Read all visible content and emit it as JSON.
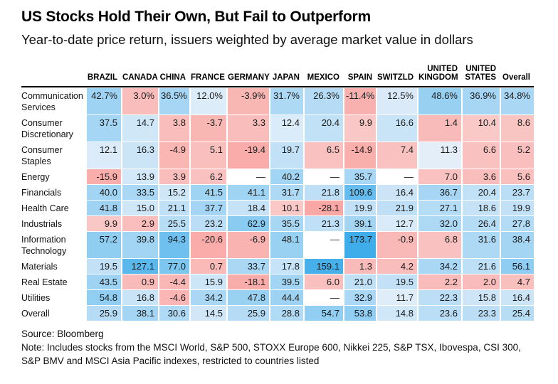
{
  "header": {
    "title": "US Stocks Hold Their Own, But Fail to Outperform",
    "subtitle": "Year-to-date price return, issuers weighted by average market value in dollars"
  },
  "footer": {
    "source": "Source: Bloomberg",
    "note": "Note: Includes stocks from the MSCI World, S&P 500, STOXX Europe 600, Nikkei 225, S&P TSX, Ibovespa, CSI 300, S&P BMV and MSCI Asia Pacific indexes, restricted to countries listed"
  },
  "chart_data": {
    "type": "heatmap",
    "title": "US Stocks Hold Their Own, But Fail to Outperform",
    "subtitle": "Year-to-date price return, issuers weighted by average market value in dollars",
    "unit": "percent",
    "missing_marker": "—",
    "columns": [
      "BRAZIL",
      "CANADA",
      "CHINA",
      "FRANCE",
      "GERMANY",
      "JAPAN",
      "MEXICO",
      "SPAIN",
      "SWITZLD",
      "UNITED KINGDOM",
      "UNITED STATES",
      "Overall"
    ],
    "rows": [
      {
        "label": "Communication Services",
        "values": [
          "42.7%",
          "3.0%",
          "36.5%",
          "12.0%",
          "-3.9%",
          "31.7%",
          "26.3%",
          "-11.4%",
          "12.5%",
          "48.6%",
          "36.9%",
          "34.8%"
        ]
      },
      {
        "label": "Consumer Discretionary",
        "values": [
          "37.5",
          "14.7",
          "3.8",
          "-3.7",
          "3.3",
          "12.4",
          "20.4",
          "9.9",
          "16.6",
          "1.4",
          "10.4",
          "8.6"
        ]
      },
      {
        "label": "Consumer Staples",
        "values": [
          "12.1",
          "16.3",
          "-4.9",
          "5.1",
          "-19.4",
          "19.7",
          "6.5",
          "-14.9",
          "7.4",
          "11.3",
          "6.6",
          "5.2"
        ]
      },
      {
        "label": "Energy",
        "values": [
          "-15.9",
          "13.9",
          "3.9",
          "6.2",
          "—",
          "40.2",
          "—",
          "35.7",
          "—",
          "7.0",
          "3.6",
          "5.6"
        ]
      },
      {
        "label": "Financials",
        "values": [
          "40.0",
          "33.5",
          "15.2",
          "41.5",
          "41.1",
          "31.7",
          "21.8",
          "109.6",
          "16.4",
          "36.7",
          "20.4",
          "23.7"
        ]
      },
      {
        "label": "Health Care",
        "values": [
          "41.8",
          "15.0",
          "21.1",
          "37.7",
          "18.4",
          "10.1",
          "-28.1",
          "19.9",
          "21.9",
          "27.1",
          "18.6",
          "19.9"
        ]
      },
      {
        "label": "Industrials",
        "values": [
          "9.9",
          "2.9",
          "25.5",
          "23.2",
          "62.9",
          "35.5",
          "21.3",
          "39.1",
          "12.7",
          "32.0",
          "26.4",
          "27.8"
        ]
      },
      {
        "label": "Information Technology",
        "values": [
          "57.2",
          "39.8",
          "94.3",
          "-20.6",
          "-6.9",
          "48.1",
          "—",
          "173.7",
          "-0.9",
          "6.8",
          "31.6",
          "38.4"
        ]
      },
      {
        "label": "Materials",
        "values": [
          "19.5",
          "127.1",
          "77.0",
          "0.7",
          "33.7",
          "17.8",
          "159.1",
          "1.3",
          "4.2",
          "34.2",
          "21.6",
          "56.1"
        ]
      },
      {
        "label": "Real Estate",
        "values": [
          "43.5",
          "0.9",
          "-4.4",
          "15.9",
          "-18.1",
          "39.5",
          "6.0",
          "21.0",
          "19.5",
          "2.2",
          "2.0",
          "4.7"
        ]
      },
      {
        "label": "Utilities",
        "values": [
          "54.8",
          "16.8",
          "-4.6",
          "34.2",
          "47.8",
          "44.4",
          "—",
          "32.9",
          "11.7",
          "22.3",
          "15.8",
          "16.4"
        ]
      },
      {
        "label": "Overall",
        "values": [
          "25.9",
          "38.1",
          "30.6",
          "14.5",
          "25.9",
          "28.8",
          "54.7",
          "53.8",
          "14.8",
          "23.6",
          "23.3",
          "25.4"
        ]
      }
    ],
    "color_scale": {
      "type": "diverging",
      "midpoint": 11,
      "min": -28.1,
      "max": 173.7,
      "positive_light": "#eaf1fa",
      "positive_strong": "#3fadea",
      "negative_light": "#f9cecd",
      "negative_strong": "#f9a8a5",
      "missing": "#ffffff"
    }
  }
}
